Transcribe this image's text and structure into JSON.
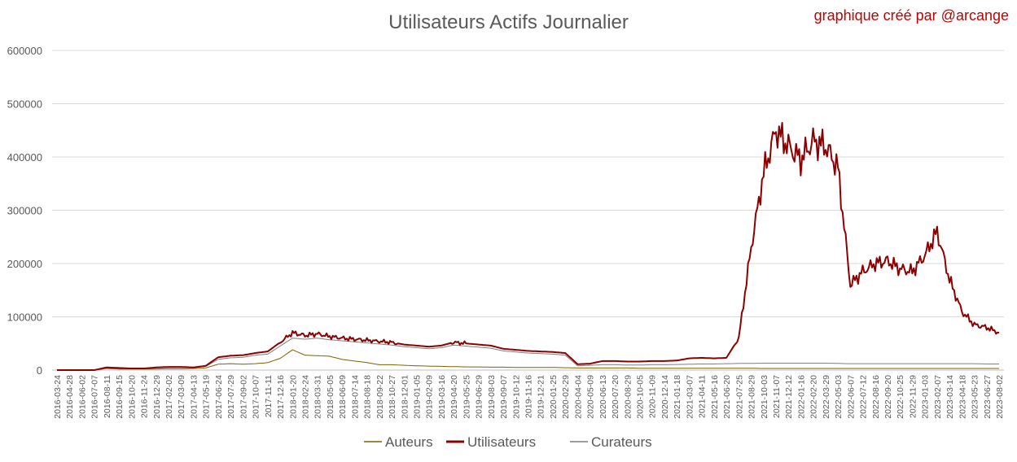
{
  "chart_data": {
    "type": "line",
    "title": "Utilisateurs Actifs Journalier",
    "credit": "graphique créé par @arcange",
    "ylim": [
      0,
      600000
    ],
    "yticks": [
      "0",
      "100000",
      "200000",
      "300000",
      "400000",
      "500000",
      "600000"
    ],
    "x_categories": [
      "2016-03-24",
      "2016-04-28",
      "2016-06-02",
      "2016-07-07",
      "2016-08-11",
      "2016-09-15",
      "2016-10-20",
      "2016-11-24",
      "2016-12-29",
      "2017-02-02",
      "2017-03-09",
      "2017-04-13",
      "2017-05-19",
      "2017-06-24",
      "2017-07-29",
      "2017-09-02",
      "2017-10-07",
      "2017-11-11",
      "2017-12-16",
      "2018-01-20",
      "2018-02-24",
      "2018-03-31",
      "2018-05-05",
      "2018-06-09",
      "2018-07-14",
      "2018-08-18",
      "2018-09-22",
      "2018-10-27",
      "2018-12-01",
      "2019-01-05",
      "2019-02-09",
      "2019-03-16",
      "2019-04-20",
      "2019-05-25",
      "2019-06-29",
      "2019-08-03",
      "2019-09-07",
      "2019-10-12",
      "2019-11-16",
      "2019-12-21",
      "2020-01-25",
      "2020-02-29",
      "2020-04-04",
      "2020-05-09",
      "2020-06-13",
      "2020-07-20",
      "2020-08-29",
      "2020-10-05",
      "2020-11-09",
      "2020-12-14",
      "2021-01-18",
      "2021-03-07",
      "2021-04-11",
      "2021-05-16",
      "2021-06-20",
      "2021-07-25",
      "2021-08-29",
      "2021-10-03",
      "2021-11-07",
      "2021-12-12",
      "2022-01-16",
      "2022-02-20",
      "2022-03-29",
      "2022-05-03",
      "2022-06-07",
      "2022-07-12",
      "2022-08-16",
      "2022-09-20",
      "2022-10-25",
      "2022-11-29",
      "2023-01-03",
      "2023-02-07",
      "2023-03-14",
      "2023-04-18",
      "2023-05-23",
      "2023-06-27",
      "2023-08-02"
    ],
    "legend_position": "bottom",
    "grid": "horizontal",
    "series": [
      {
        "name": "Auteurs",
        "color": "#7f6000",
        "values": [
          0,
          0,
          0,
          0,
          3000,
          2000,
          2000,
          2000,
          2000,
          2500,
          2500,
          3000,
          4000,
          11000,
          12000,
          11000,
          12000,
          14000,
          22000,
          38000,
          28000,
          27000,
          26000,
          20000,
          17000,
          14000,
          10000,
          10000,
          9000,
          8000,
          7500,
          7000,
          6500,
          6000,
          6000,
          5500,
          5500,
          5000,
          5000,
          5000,
          5000,
          4500,
          4000,
          4000,
          4000,
          4000,
          4000,
          3500,
          3500,
          3500,
          3500,
          3500,
          3500,
          3500,
          3500,
          3500,
          3500,
          3000,
          3000,
          3000,
          3000,
          3000,
          3000,
          3000,
          3000,
          3000,
          3000,
          3000,
          3000,
          3000,
          3000,
          3000,
          3000,
          3000,
          3000,
          3000,
          3000
        ]
      },
      {
        "name": "Utilisateurs",
        "color": "#8b0000",
        "values": [
          0,
          0,
          0,
          0,
          5000,
          4000,
          3000,
          3000,
          5000,
          6000,
          6000,
          5000,
          8000,
          24000,
          27000,
          28000,
          32000,
          35000,
          52000,
          70000,
          65000,
          68000,
          63000,
          60000,
          58000,
          56000,
          54000,
          52000,
          48000,
          46000,
          44000,
          46000,
          52000,
          50000,
          48000,
          46000,
          40000,
          38000,
          36000,
          35000,
          34000,
          32000,
          11000,
          12000,
          17000,
          17000,
          16000,
          16000,
          17000,
          17000,
          18000,
          22000,
          23000,
          22000,
          23000,
          60000,
          230000,
          370000,
          450000,
          420000,
          395000,
          430000,
          420000,
          380000,
          160000,
          185000,
          200000,
          205000,
          190000,
          185000,
          215000,
          260000,
          170000,
          110000,
          85000,
          80000,
          70000
        ]
      },
      {
        "name": "Curateurs",
        "color": "#7f7f7f",
        "values": [
          0,
          0,
          0,
          0,
          4000,
          3000,
          2500,
          2500,
          4000,
          5000,
          5000,
          4500,
          7000,
          20000,
          23000,
          24000,
          28000,
          30000,
          45000,
          60000,
          58000,
          60000,
          57000,
          55000,
          53000,
          51000,
          49000,
          47000,
          44000,
          42000,
          40000,
          42000,
          47000,
          45000,
          43000,
          41000,
          36000,
          34000,
          32000,
          31000,
          30000,
          28000,
          8000,
          9000,
          10000,
          10000,
          9500,
          9500,
          10000,
          10000,
          10500,
          11000,
          11500,
          11500,
          12000,
          12500,
          12500,
          13000,
          13000,
          13000,
          13000,
          13000,
          13000,
          12500,
          12000,
          12000,
          12000,
          12000,
          12000,
          12000,
          12000,
          12000,
          12000,
          12000,
          12000,
          11500,
          11500
        ]
      }
    ]
  }
}
